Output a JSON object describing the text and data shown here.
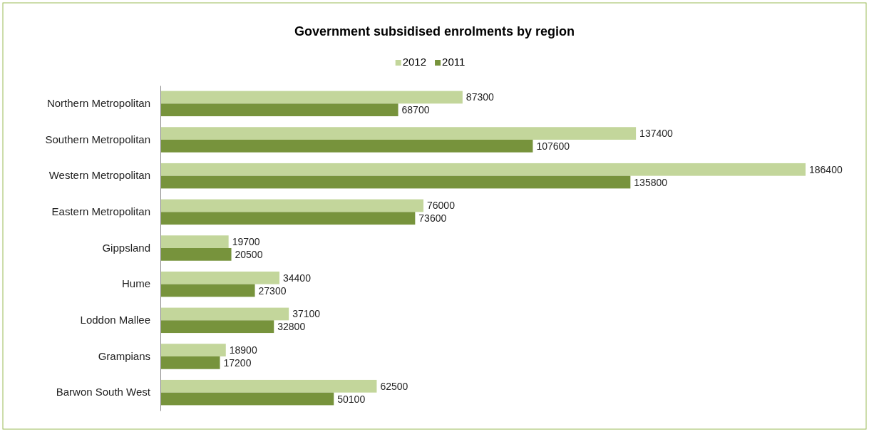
{
  "chart_data": {
    "type": "bar",
    "orientation": "horizontal",
    "title": "Government subsidised enrolments by region",
    "categories": [
      "Northern Metropolitan",
      "Southern Metropolitan",
      "Western Metropolitan",
      "Eastern Metropolitan",
      "Gippsland",
      "Hume",
      "Loddon Mallee",
      "Grampians",
      "Barwon South West"
    ],
    "series": [
      {
        "name": "2012",
        "color": "#c3d69b",
        "values": [
          87300,
          137400,
          186400,
          76000,
          19700,
          34400,
          37100,
          18900,
          62500
        ]
      },
      {
        "name": "2011",
        "color": "#77933c",
        "values": [
          68700,
          107600,
          135800,
          73600,
          20500,
          27300,
          32800,
          17200,
          50100
        ]
      }
    ],
    "data_labels": true,
    "legend": "top",
    "tick_labels": "y"
  }
}
